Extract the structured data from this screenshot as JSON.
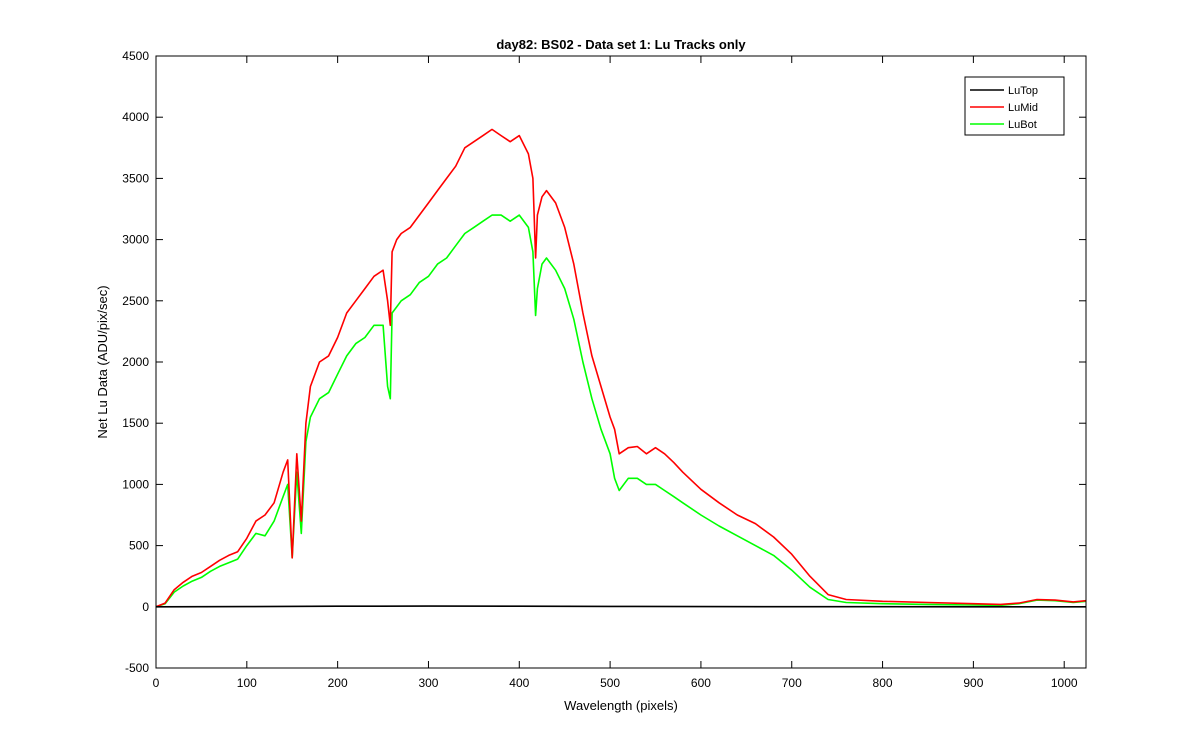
{
  "chart_data": {
    "type": "line",
    "title": "day82: BS02 - Data set 1: Lu Tracks only",
    "xlabel": "Wavelength (pixels)",
    "ylabel": "Net Lu Data (ADU/pix/sec)",
    "xlim": [
      0,
      1024
    ],
    "ylim": [
      -500,
      4500
    ],
    "xticks": [
      0,
      100,
      200,
      300,
      400,
      500,
      600,
      700,
      800,
      900,
      1000
    ],
    "yticks": [
      -500,
      0,
      500,
      1000,
      1500,
      2000,
      2500,
      3000,
      3500,
      4000,
      4500
    ],
    "grid": false,
    "legend_position": "top-right",
    "series": [
      {
        "name": "LuTop",
        "color": "#000000",
        "x": [
          0,
          100,
          200,
          300,
          400,
          500,
          600,
          700,
          800,
          900,
          1000,
          1024
        ],
        "y": [
          0,
          2,
          5,
          6,
          5,
          3,
          2,
          1,
          1,
          0,
          0,
          0
        ]
      },
      {
        "name": "LuMid",
        "color": "#ff0000",
        "x": [
          0,
          10,
          20,
          30,
          40,
          50,
          60,
          70,
          80,
          90,
          100,
          110,
          120,
          130,
          140,
          145,
          150,
          155,
          160,
          165,
          170,
          180,
          190,
          200,
          210,
          220,
          230,
          240,
          250,
          255,
          258,
          260,
          265,
          270,
          280,
          290,
          300,
          310,
          320,
          330,
          340,
          350,
          360,
          370,
          380,
          390,
          400,
          410,
          415,
          418,
          420,
          425,
          430,
          440,
          450,
          460,
          470,
          480,
          490,
          500,
          505,
          510,
          520,
          530,
          540,
          550,
          560,
          570,
          580,
          600,
          620,
          640,
          660,
          680,
          700,
          720,
          740,
          760,
          800,
          850,
          900,
          930,
          950,
          970,
          990,
          1010,
          1024
        ],
        "y": [
          0,
          30,
          140,
          200,
          250,
          280,
          330,
          380,
          420,
          450,
          560,
          700,
          750,
          850,
          1100,
          1200,
          400,
          1250,
          700,
          1500,
          1800,
          2000,
          2050,
          2200,
          2400,
          2500,
          2600,
          2700,
          2750,
          2500,
          2300,
          2900,
          3000,
          3050,
          3100,
          3200,
          3300,
          3400,
          3500,
          3600,
          3750,
          3800,
          3850,
          3900,
          3850,
          3800,
          3850,
          3700,
          3500,
          2850,
          3200,
          3350,
          3400,
          3300,
          3100,
          2800,
          2400,
          2050,
          1800,
          1550,
          1450,
          1250,
          1300,
          1310,
          1250,
          1300,
          1250,
          1180,
          1100,
          960,
          850,
          750,
          680,
          570,
          430,
          250,
          100,
          60,
          45,
          35,
          25,
          20,
          30,
          60,
          55,
          40,
          50
        ]
      },
      {
        "name": "LuBot",
        "color": "#00ff00",
        "x": [
          0,
          10,
          20,
          30,
          40,
          50,
          60,
          70,
          80,
          90,
          100,
          110,
          120,
          130,
          140,
          145,
          150,
          155,
          160,
          165,
          170,
          180,
          190,
          200,
          210,
          220,
          230,
          240,
          250,
          255,
          258,
          260,
          265,
          270,
          280,
          290,
          300,
          310,
          320,
          330,
          340,
          350,
          360,
          370,
          380,
          390,
          400,
          410,
          415,
          418,
          420,
          425,
          430,
          440,
          450,
          460,
          470,
          480,
          490,
          500,
          505,
          510,
          520,
          530,
          540,
          550,
          560,
          570,
          580,
          600,
          620,
          640,
          660,
          680,
          700,
          720,
          740,
          760,
          800,
          850,
          900,
          930,
          950,
          970,
          990,
          1010,
          1024
        ],
        "y": [
          0,
          25,
          120,
          170,
          210,
          240,
          290,
          330,
          360,
          390,
          500,
          600,
          580,
          700,
          900,
          1000,
          400,
          1100,
          600,
          1350,
          1550,
          1700,
          1750,
          1900,
          2050,
          2150,
          2200,
          2300,
          2300,
          1800,
          1700,
          2400,
          2450,
          2500,
          2550,
          2650,
          2700,
          2800,
          2850,
          2950,
          3050,
          3100,
          3150,
          3200,
          3200,
          3150,
          3200,
          3100,
          2900,
          2380,
          2600,
          2800,
          2850,
          2750,
          2600,
          2350,
          2000,
          1700,
          1450,
          1250,
          1050,
          950,
          1050,
          1050,
          1000,
          1000,
          950,
          900,
          850,
          750,
          660,
          580,
          500,
          420,
          300,
          160,
          60,
          35,
          25,
          20,
          15,
          12,
          25,
          55,
          50,
          35,
          45
        ]
      }
    ]
  }
}
